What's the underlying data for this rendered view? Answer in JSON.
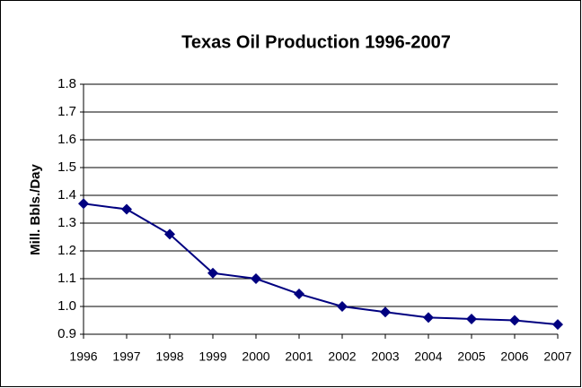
{
  "chart_data": {
    "type": "line",
    "title": "Texas Oil Production 1996-2007",
    "ylabel": "Mill. Bbls./Day",
    "x": [
      1996,
      1997,
      1998,
      1999,
      2000,
      2001,
      2002,
      2003,
      2004,
      2005,
      2006,
      2007
    ],
    "series": [
      {
        "name": "Texas Oil Production",
        "color": "#000080",
        "values": [
          1.37,
          1.35,
          1.26,
          1.12,
          1.1,
          1.045,
          1.0,
          0.98,
          0.96,
          0.955,
          0.95,
          0.935
        ]
      }
    ],
    "xlim": [
      1996,
      2007
    ],
    "xticks": [
      1996,
      1997,
      1998,
      1999,
      2000,
      2001,
      2002,
      2003,
      2004,
      2005,
      2006,
      2007
    ],
    "ylim": [
      0.9,
      1.8
    ],
    "yticks": [
      0.9,
      {
        "value": 1.0,
        "label": "1.0"
      },
      1.1,
      1.2,
      1.3,
      1.4,
      1.5,
      1.6,
      1.7,
      1.8
    ],
    "grid": true
  }
}
